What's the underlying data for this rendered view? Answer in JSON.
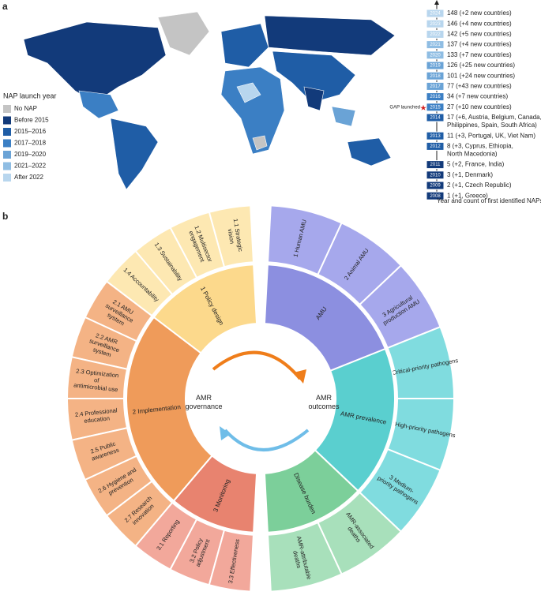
{
  "panel_a": {
    "label": "a",
    "legend": {
      "title": "NAP launch year",
      "items": [
        {
          "label": "No NAP",
          "color": "#c4c4c4"
        },
        {
          "label": "Before 2015",
          "color": "#123a7a"
        },
        {
          "label": "2015–2016",
          "color": "#1f5da6"
        },
        {
          "label": "2017–2018",
          "color": "#3b7fc4"
        },
        {
          "label": "2019–2020",
          "color": "#6aa3d6"
        },
        {
          "label": "2021–2022",
          "color": "#8fbde3"
        },
        {
          "label": "After 2022",
          "color": "#b8d6ee"
        }
      ]
    },
    "timeline": {
      "caption": "Year and count of first identified NAPs",
      "gap_label": "GAP launched",
      "entries": [
        {
          "year": "2024",
          "lines": [
            "148 (+2 new countries)"
          ]
        },
        {
          "year": "2023",
          "lines": [
            "146 (+4 new countries)"
          ]
        },
        {
          "year": "2022",
          "lines": [
            "142 (+5 new countries)"
          ]
        },
        {
          "year": "2021",
          "lines": [
            "137 (+4 new countries)"
          ]
        },
        {
          "year": "2020",
          "lines": [
            "133 (+7 new countries)"
          ]
        },
        {
          "year": "2019",
          "lines": [
            "126 (+25 new countries)"
          ]
        },
        {
          "year": "2018",
          "lines": [
            "101 (+24 new countries)"
          ]
        },
        {
          "year": "2017",
          "lines": [
            "77 (+43 new countries)"
          ]
        },
        {
          "year": "2016",
          "lines": [
            "34 (+7 new countries)"
          ]
        },
        {
          "year": "2015",
          "lines": [
            "27 (+10 new countries)"
          ]
        },
        {
          "year": "2014",
          "lines": [
            "17 (+6, Austria, Belgium, Canada,",
            "Philippines, Spain, South Africa)"
          ]
        },
        {
          "year": "2013",
          "lines": [
            "11 (+3, Portugal, UK, Viet Nam)"
          ]
        },
        {
          "year": "2012",
          "lines": [
            "8 (+3, Cyprus, Ethiopia,",
            "North Macedonia)"
          ]
        },
        {
          "year": "2011",
          "lines": [
            "5 (+2, France, India)"
          ]
        },
        {
          "year": "2010",
          "lines": [
            "3 (+1, Denmark)"
          ]
        },
        {
          "year": "2009",
          "lines": [
            "2 (+1, Czech Republic)"
          ]
        },
        {
          "year": "2008",
          "lines": [
            "1 (+1, Greece)"
          ]
        }
      ]
    }
  },
  "panel_b": {
    "label": "b",
    "center_left": [
      "AMR",
      "governance"
    ],
    "center_right": [
      "AMR",
      "outcomes"
    ],
    "left": [
      {
        "lines": [
          "1 Policy design"
        ],
        "color": "#fcd98c",
        "outer_color": "#fde8b2",
        "children": [
          {
            "lines": [
              "1.1 Strategic",
              "vision"
            ]
          },
          {
            "lines": [
              "1.2 Multisector",
              "engagement"
            ]
          },
          {
            "lines": [
              "1.3 Sustainability"
            ]
          },
          {
            "lines": [
              "1.4 Accountability"
            ]
          }
        ]
      },
      {
        "lines": [
          "2 Implementation"
        ],
        "color": "#ef9b5a",
        "outer_color": "#f4b385",
        "children": [
          {
            "lines": [
              "2.1 AMU",
              "surveillance",
              "system"
            ]
          },
          {
            "lines": [
              "2.2 AMR",
              "surveillance",
              "system"
            ]
          },
          {
            "lines": [
              "2.3 Optimization",
              "of",
              "antimicrobial use"
            ]
          },
          {
            "lines": [
              "2.4 Professional",
              "education"
            ]
          },
          {
            "lines": [
              "2.5 Public",
              "awareness"
            ]
          },
          {
            "lines": [
              "2.6 Hygiene and",
              "prevention"
            ]
          },
          {
            "lines": [
              "2.7 Research",
              "innovation"
            ]
          }
        ]
      },
      {
        "lines": [
          "3 Monitoring"
        ],
        "color": "#e8836f",
        "outer_color": "#f2a89b",
        "children": [
          {
            "lines": [
              "3.1 Reporting"
            ]
          },
          {
            "lines": [
              "3.2 Policy",
              "adjustment"
            ]
          },
          {
            "lines": [
              "3.3 Effectiveness"
            ]
          }
        ]
      }
    ],
    "right": [
      {
        "lines": [
          "AMU"
        ],
        "color": "#8c8fe0",
        "outer_color": "#a6a8ec",
        "children": [
          {
            "lines": [
              "1 Human AMU"
            ]
          },
          {
            "lines": [
              "2 Animal AMU"
            ]
          },
          {
            "lines": [
              "3 Agricultural",
              "production AMU"
            ]
          }
        ]
      },
      {
        "lines": [
          "AMR prevalence"
        ],
        "color": "#5acfcf",
        "outer_color": "#80dcdf",
        "children": [
          {
            "lines": [
              "1 Critical-priority pathogens"
            ]
          },
          {
            "lines": [
              "2 High-priority pathogens"
            ]
          },
          {
            "lines": [
              "3 Medium-",
              "priority pathogens"
            ]
          }
        ]
      },
      {
        "lines": [
          "Disease burden"
        ],
        "color": "#7ccf9a",
        "outer_color": "#a8e0bb",
        "children": [
          {
            "lines": [
              "AMR-associated",
              "deaths"
            ]
          },
          {
            "lines": [
              "AMR-attributable",
              "deaths"
            ]
          }
        ]
      }
    ]
  }
}
